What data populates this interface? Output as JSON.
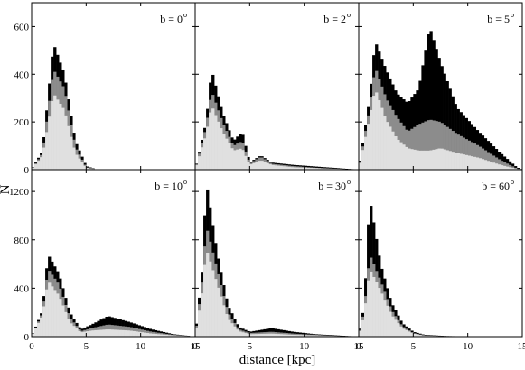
{
  "figure": {
    "xlabel": "distance [kpc]",
    "ylabel": "N"
  },
  "chart_data": {
    "type": "histogram-grid",
    "layout": "2 rows x 3 columns, shared axes",
    "xlim": [
      0,
      15
    ],
    "xticks": [
      0,
      5,
      10,
      15
    ],
    "xlabel": "distance [kpc]",
    "ylabel": "N",
    "rows": [
      {
        "ylim": [
          0,
          700
        ],
        "yticks": [
          0,
          200,
          400,
          600
        ]
      },
      {
        "ylim": [
          0,
          1380
        ],
        "yticks": [
          0,
          400,
          800,
          1200
        ]
      }
    ],
    "bin_width_kpc": 0.25,
    "colors": {
      "total": "#000000",
      "middle": "#8c8c8c",
      "inner": "#e0e0e0"
    },
    "panels": [
      {
        "label": "b = 0",
        "degree": "o",
        "row": 0,
        "total": [
          [
            0,
            0
          ],
          [
            1,
            80
          ],
          [
            2,
            530
          ],
          [
            3,
            400
          ],
          [
            4,
            120
          ],
          [
            5,
            15
          ],
          [
            6,
            0
          ],
          [
            15,
            0
          ]
        ],
        "middle": [
          [
            0,
            0
          ],
          [
            1,
            70
          ],
          [
            2,
            420
          ],
          [
            3,
            340
          ],
          [
            4,
            95
          ],
          [
            5,
            10
          ],
          [
            6,
            0
          ],
          [
            15,
            0
          ]
        ],
        "inner": [
          [
            0,
            0
          ],
          [
            1,
            60
          ],
          [
            2,
            320
          ],
          [
            3,
            250
          ],
          [
            4,
            70
          ],
          [
            5,
            8
          ],
          [
            6,
            0
          ],
          [
            15,
            0
          ]
        ]
      },
      {
        "label": "b = 2",
        "degree": "o",
        "row": 0,
        "total": [
          [
            0,
            0
          ],
          [
            1,
            200
          ],
          [
            1.5,
            420
          ],
          [
            2.5,
            240
          ],
          [
            3.5,
            120
          ],
          [
            4.3,
            160
          ],
          [
            5,
            30
          ],
          [
            6,
            60
          ],
          [
            7,
            30
          ],
          [
            9,
            20
          ],
          [
            12,
            10
          ],
          [
            15,
            0
          ]
        ],
        "middle": [
          [
            0,
            0
          ],
          [
            1,
            180
          ],
          [
            1.5,
            330
          ],
          [
            2.5,
            200
          ],
          [
            3.5,
            100
          ],
          [
            4.3,
            120
          ],
          [
            5,
            25
          ],
          [
            6,
            55
          ],
          [
            7,
            25
          ],
          [
            9,
            15
          ],
          [
            12,
            5
          ],
          [
            15,
            0
          ]
        ],
        "inner": [
          [
            0,
            0
          ],
          [
            1,
            150
          ],
          [
            1.5,
            270
          ],
          [
            2.5,
            160
          ],
          [
            3.5,
            80
          ],
          [
            4.3,
            90
          ],
          [
            5,
            20
          ],
          [
            6,
            40
          ],
          [
            7,
            20
          ],
          [
            9,
            10
          ],
          [
            12,
            5
          ],
          [
            15,
            0
          ]
        ]
      },
      {
        "label": "b = 5",
        "degree": "o",
        "row": 0,
        "total": [
          [
            0,
            0
          ],
          [
            1,
            300
          ],
          [
            1.5,
            540
          ],
          [
            2.5,
            420
          ],
          [
            3.5,
            320
          ],
          [
            4.5,
            280
          ],
          [
            5.5,
            340
          ],
          [
            6.5,
            600
          ],
          [
            7.5,
            450
          ],
          [
            9,
            260
          ],
          [
            11,
            160
          ],
          [
            13,
            70
          ],
          [
            14.5,
            10
          ],
          [
            15,
            0
          ]
        ],
        "middle": [
          [
            0,
            0
          ],
          [
            1,
            260
          ],
          [
            1.5,
            430
          ],
          [
            2.5,
            300
          ],
          [
            3.5,
            220
          ],
          [
            4.5,
            160
          ],
          [
            5.5,
            190
          ],
          [
            6.5,
            210
          ],
          [
            7.5,
            200
          ],
          [
            9,
            150
          ],
          [
            11,
            100
          ],
          [
            13,
            40
          ],
          [
            14.5,
            5
          ],
          [
            15,
            0
          ]
        ],
        "inner": [
          [
            0,
            0
          ],
          [
            1,
            220
          ],
          [
            1.5,
            340
          ],
          [
            2.5,
            210
          ],
          [
            3.5,
            130
          ],
          [
            4.5,
            90
          ],
          [
            5.5,
            80
          ],
          [
            6.5,
            80
          ],
          [
            7.5,
            90
          ],
          [
            9,
            70
          ],
          [
            11,
            50
          ],
          [
            13,
            20
          ],
          [
            14.5,
            3
          ],
          [
            15,
            0
          ]
        ]
      },
      {
        "label": "b = 10",
        "degree": "o",
        "row": 1,
        "total": [
          [
            0,
            0
          ],
          [
            1,
            220
          ],
          [
            1.5,
            680
          ],
          [
            2.5,
            520
          ],
          [
            3.5,
            200
          ],
          [
            4.5,
            60
          ],
          [
            5.5,
            100
          ],
          [
            7,
            170
          ],
          [
            9,
            120
          ],
          [
            11,
            60
          ],
          [
            13,
            20
          ],
          [
            15,
            0
          ]
        ],
        "middle": [
          [
            0,
            0
          ],
          [
            1,
            200
          ],
          [
            1.5,
            560
          ],
          [
            2.5,
            430
          ],
          [
            3.5,
            160
          ],
          [
            4.5,
            45
          ],
          [
            5.5,
            70
          ],
          [
            7,
            100
          ],
          [
            9,
            80
          ],
          [
            11,
            40
          ],
          [
            13,
            15
          ],
          [
            15,
            0
          ]
        ],
        "inner": [
          [
            0,
            0
          ],
          [
            1,
            180
          ],
          [
            1.5,
            460
          ],
          [
            2.5,
            340
          ],
          [
            3.5,
            120
          ],
          [
            4.5,
            35
          ],
          [
            5.5,
            50
          ],
          [
            7,
            60
          ],
          [
            9,
            50
          ],
          [
            11,
            25
          ],
          [
            13,
            10
          ],
          [
            15,
            0
          ]
        ]
      },
      {
        "label": "b = 30",
        "degree": "o",
        "row": 1,
        "total": [
          [
            0,
            0
          ],
          [
            0.7,
            600
          ],
          [
            1,
            1290
          ],
          [
            2,
            700
          ],
          [
            3,
            260
          ],
          [
            4,
            80
          ],
          [
            5,
            40
          ],
          [
            7,
            70
          ],
          [
            9,
            40
          ],
          [
            11,
            20
          ],
          [
            13,
            10
          ],
          [
            15,
            0
          ]
        ],
        "middle": [
          [
            0,
            0
          ],
          [
            0.7,
            500
          ],
          [
            1,
            920
          ],
          [
            2,
            560
          ],
          [
            3,
            200
          ],
          [
            4,
            60
          ],
          [
            5,
            30
          ],
          [
            7,
            40
          ],
          [
            9,
            25
          ],
          [
            11,
            15
          ],
          [
            13,
            5
          ],
          [
            15,
            0
          ]
        ],
        "inner": [
          [
            0,
            0
          ],
          [
            0.7,
            400
          ],
          [
            1,
            730
          ],
          [
            2,
            440
          ],
          [
            3,
            150
          ],
          [
            4,
            45
          ],
          [
            5,
            20
          ],
          [
            7,
            25
          ],
          [
            9,
            15
          ],
          [
            11,
            10
          ],
          [
            13,
            5
          ],
          [
            15,
            0
          ]
        ]
      },
      {
        "label": "b = 60",
        "degree": "o",
        "row": 1,
        "total": [
          [
            0,
            0
          ],
          [
            0.5,
            260
          ],
          [
            1,
            1150
          ],
          [
            2,
            600
          ],
          [
            3,
            280
          ],
          [
            4,
            110
          ],
          [
            5,
            40
          ],
          [
            6,
            15
          ],
          [
            8,
            5
          ],
          [
            10,
            2
          ],
          [
            15,
            0
          ]
        ],
        "middle": [
          [
            0,
            0
          ],
          [
            0.5,
            220
          ],
          [
            1,
            680
          ],
          [
            2,
            460
          ],
          [
            3,
            220
          ],
          [
            4,
            85
          ],
          [
            5,
            30
          ],
          [
            6,
            10
          ],
          [
            8,
            3
          ],
          [
            10,
            1
          ],
          [
            15,
            0
          ]
        ],
        "inner": [
          [
            0,
            0
          ],
          [
            0.5,
            180
          ],
          [
            1,
            560
          ],
          [
            2,
            380
          ],
          [
            3,
            180
          ],
          [
            4,
            70
          ],
          [
            5,
            25
          ],
          [
            6,
            8
          ],
          [
            8,
            2
          ],
          [
            10,
            1
          ],
          [
            15,
            0
          ]
        ]
      }
    ]
  }
}
